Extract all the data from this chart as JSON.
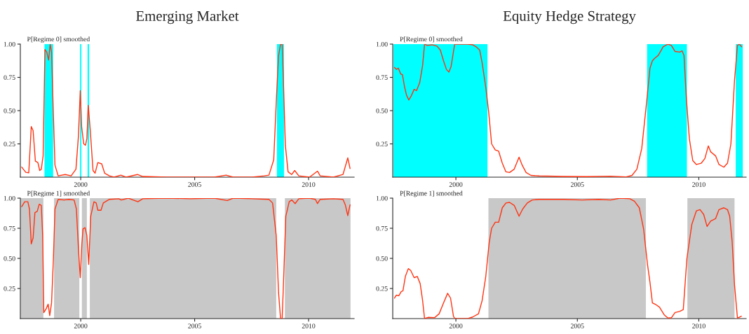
{
  "chart_data": [
    {
      "type": "line",
      "title": "Emerging Market",
      "annotations": [
        "P[Regime 0] smoothed"
      ],
      "xlim": [
        1997.35,
        2012.0
      ],
      "xticks": [
        2000,
        2005,
        2010
      ],
      "ylim": [
        0,
        1
      ],
      "yticks": [
        {
          "value": 0.25,
          "label": "0.25"
        },
        {
          "value": 0.5,
          "label": "0.50"
        },
        {
          "value": 0.75,
          "label": "0.75"
        },
        {
          "value": 1,
          "label": "1.00"
        }
      ],
      "bands": [
        {
          "axis": "x",
          "from": 1998.41,
          "to": 1998.79,
          "color": "#00ffff"
        },
        {
          "axis": "x",
          "from": 1999.97,
          "to": 2000.03,
          "color": "#00ffff"
        },
        {
          "axis": "x",
          "from": 2000.3,
          "to": 2000.37,
          "color": "#00ffff"
        },
        {
          "axis": "x",
          "from": 2008.61,
          "to": 2008.92,
          "color": "#00ffff"
        }
      ],
      "series": [
        {
          "color": "#ff3311",
          "x": [
            1997.41,
            1997.59,
            1997.72,
            1997.83,
            1997.91,
            1998.01,
            1998.12,
            1998.2,
            1998.27,
            1998.35,
            1998.43,
            1998.51,
            1998.59,
            1998.66,
            1998.72,
            1998.8,
            1998.87,
            1999.01,
            1999.32,
            1999.58,
            1999.79,
            1999.9,
            1999.98,
            2000.04,
            2000.13,
            2000.21,
            2000.27,
            2000.33,
            2000.42,
            2000.54,
            2000.63,
            2000.75,
            2000.92,
            2001.05,
            2001.26,
            2001.46,
            2001.76,
            2001.99,
            2002.49,
            2002.72,
            2003.77,
            2004.81,
            2005.86,
            2006.38,
            2006.69,
            2007.53,
            2008.05,
            2008.26,
            2008.47,
            2008.58,
            2008.68,
            2008.77,
            2008.84,
            2008.89,
            2008.98,
            2009.1,
            2009.26,
            2009.39,
            2009.57,
            2010.04,
            2010.39,
            2010.51,
            2011.09,
            2011.51,
            2011.72,
            2011.82
          ],
          "values": [
            0.076,
            0.036,
            0.033,
            0.38,
            0.35,
            0.12,
            0.11,
            0.05,
            0.06,
            0.16,
            0.96,
            0.94,
            0.88,
            1.0,
            0.94,
            0.47,
            0.09,
            0.01,
            0.02,
            0.01,
            0.06,
            0.31,
            0.65,
            0.38,
            0.25,
            0.24,
            0.29,
            0.54,
            0.35,
            0.05,
            0.03,
            0.11,
            0.1,
            0.03,
            0.01,
            0.0,
            0.015,
            0.0,
            0.02,
            0.005,
            0.0,
            0.0,
            0.0,
            0.015,
            0.0,
            0.0,
            0.01,
            0.015,
            0.13,
            0.56,
            0.91,
            1.0,
            1.0,
            0.75,
            0.24,
            0.04,
            0.02,
            0.05,
            0.01,
            0.0,
            0.045,
            0.01,
            0.0,
            0.02,
            0.145,
            0.065
          ]
        }
      ]
    },
    {
      "type": "line",
      "annotations": [
        "P[Regime 1] smoothed"
      ],
      "xlim": [
        1997.35,
        2012.0
      ],
      "xticks": [
        2000,
        2005,
        2010
      ],
      "ylim": [
        0,
        1
      ],
      "yticks": [
        {
          "value": 0.25,
          "label": "0.25"
        },
        {
          "value": 0.5,
          "label": "0.50"
        },
        {
          "value": 0.75,
          "label": "0.75"
        },
        {
          "value": 1,
          "label": "1.00"
        }
      ],
      "bands": [
        {
          "axis": "x",
          "from": 1997.36,
          "to": 1998.36,
          "color": "#c8c8c8"
        },
        {
          "axis": "x",
          "from": 1998.83,
          "to": 1999.94,
          "color": "#c8c8c8"
        },
        {
          "axis": "x",
          "from": 2000.05,
          "to": 2000.27,
          "color": "#c8c8c8"
        },
        {
          "axis": "x",
          "from": 2000.4,
          "to": 2008.58,
          "color": "#c8c8c8"
        },
        {
          "axis": "x",
          "from": 2008.96,
          "to": 2011.84,
          "color": "#c8c8c8"
        }
      ],
      "series": [
        {
          "color": "#ff3311",
          "x": [
            1997.41,
            1997.54,
            1997.68,
            1997.75,
            1997.83,
            1997.91,
            1997.99,
            1998.09,
            1998.18,
            1998.27,
            1998.33,
            1998.38,
            1998.48,
            1998.57,
            1998.64,
            1998.72,
            1998.8,
            1998.87,
            1999.01,
            1999.27,
            1999.48,
            1999.71,
            1999.81,
            1999.9,
            1999.98,
            2000.05,
            2000.1,
            2000.19,
            2000.27,
            2000.35,
            2000.44,
            2000.58,
            2000.68,
            2000.75,
            2000.89,
            2000.99,
            2001.26,
            2001.67,
            2001.78,
            2002.09,
            2002.51,
            2002.72,
            2003.77,
            2004.81,
            2005.86,
            2006.43,
            2006.69,
            2007.53,
            2008.26,
            2008.42,
            2008.58,
            2008.68,
            2008.77,
            2008.84,
            2008.89,
            2009.0,
            2009.15,
            2009.26,
            2009.41,
            2009.57,
            2010.04,
            2010.3,
            2010.39,
            2010.51,
            2011.09,
            2011.51,
            2011.61,
            2011.72,
            2011.82
          ],
          "values": [
            0.93,
            0.97,
            0.97,
            0.91,
            0.62,
            0.67,
            0.88,
            0.89,
            0.95,
            0.94,
            0.69,
            0.05,
            0.08,
            0.12,
            0.025,
            0.13,
            0.49,
            0.91,
            0.99,
            0.985,
            0.99,
            0.985,
            0.91,
            0.58,
            0.34,
            0.62,
            0.745,
            0.755,
            0.69,
            0.45,
            0.85,
            0.97,
            0.96,
            0.9,
            0.9,
            0.96,
            0.99,
            0.995,
            0.985,
            1.0,
            0.97,
            0.995,
            1.0,
            0.995,
            1.0,
            0.98,
            1.0,
            0.995,
            0.99,
            0.96,
            0.69,
            0.22,
            0.0,
            0.0,
            0.25,
            0.85,
            0.97,
            0.985,
            0.955,
            0.995,
            1.0,
            0.99,
            0.955,
            0.99,
            0.995,
            0.99,
            0.945,
            0.855,
            0.945
          ]
        }
      ]
    },
    {
      "type": "line",
      "title": "Equity Hedge Strategy",
      "annotations": [
        "P[Regime 0] smoothed"
      ],
      "xlim": [
        1997.4,
        2011.95
      ],
      "xticks": [
        2000,
        2005,
        2010
      ],
      "ylim": [
        0,
        1
      ],
      "yticks": [
        {
          "value": 0.25,
          "label": "0.25"
        },
        {
          "value": 0.5,
          "label": "0.50"
        },
        {
          "value": 0.75,
          "label": "0.75"
        },
        {
          "value": 1,
          "label": "1.00"
        }
      ],
      "bands": [
        {
          "axis": "x",
          "from": 1997.43,
          "to": 2001.3,
          "color": "#00ffff"
        },
        {
          "axis": "x",
          "from": 2007.87,
          "to": 2009.51,
          "color": "#00ffff"
        },
        {
          "axis": "x",
          "from": 2011.52,
          "to": 2011.81,
          "color": "#00ffff"
        }
      ],
      "series": [
        {
          "color": "#ff3311",
          "x": [
            1997.47,
            1997.55,
            1997.63,
            1997.73,
            1997.8,
            1997.89,
            1997.97,
            1998.06,
            1998.16,
            1998.28,
            1998.38,
            1998.51,
            1998.63,
            1998.71,
            1998.82,
            1999.02,
            1999.22,
            1999.36,
            1999.49,
            1999.61,
            1999.71,
            1999.8,
            1999.95,
            2000.49,
            2000.69,
            2000.83,
            2000.98,
            2001.08,
            2001.23,
            2001.35,
            2001.47,
            2001.62,
            2001.76,
            2001.91,
            2002.06,
            2002.21,
            2002.4,
            2002.6,
            2002.73,
            2002.89,
            2003.09,
            2003.43,
            2004.41,
            2005.39,
            2006.37,
            2007.01,
            2007.25,
            2007.45,
            2007.65,
            2007.84,
            2007.99,
            2008.09,
            2008.19,
            2008.33,
            2008.53,
            2008.73,
            2008.87,
            2009.02,
            2009.22,
            2009.31,
            2009.39,
            2009.49,
            2009.61,
            2009.75,
            2009.9,
            2010.1,
            2010.25,
            2010.39,
            2010.49,
            2010.69,
            2010.83,
            2011.03,
            2011.18,
            2011.32,
            2011.47,
            2011.59,
            2011.67,
            2011.76
          ],
          "values": [
            0.825,
            0.81,
            0.82,
            0.775,
            0.77,
            0.675,
            0.615,
            0.58,
            0.61,
            0.66,
            0.65,
            0.71,
            0.84,
            1.0,
            0.99,
            0.995,
            0.985,
            0.955,
            0.875,
            0.81,
            0.79,
            0.83,
            1.0,
            1.0,
            0.995,
            0.98,
            0.955,
            0.86,
            0.675,
            0.49,
            0.25,
            0.205,
            0.195,
            0.105,
            0.04,
            0.035,
            0.06,
            0.15,
            0.09,
            0.035,
            0.013,
            0.009,
            0.005,
            0.004,
            0.007,
            0.002,
            0.013,
            0.06,
            0.215,
            0.545,
            0.82,
            0.875,
            0.895,
            0.915,
            0.98,
            1.0,
            0.99,
            0.945,
            0.94,
            0.95,
            0.915,
            0.585,
            0.29,
            0.125,
            0.095,
            0.105,
            0.14,
            0.235,
            0.19,
            0.16,
            0.095,
            0.075,
            0.105,
            0.25,
            0.73,
            0.99,
            1.0,
            0.98
          ]
        }
      ]
    },
    {
      "type": "line",
      "annotations": [
        "P[Regime 1] smoothed"
      ],
      "xlim": [
        1997.4,
        2011.95
      ],
      "xticks": [
        2000,
        2005,
        2010
      ],
      "ylim": [
        0,
        1
      ],
      "yticks": [
        {
          "value": 0.25,
          "label": "0.25"
        },
        {
          "value": 0.5,
          "label": "0.50"
        },
        {
          "value": 0.75,
          "label": "0.75"
        },
        {
          "value": 1,
          "label": "1.00"
        }
      ],
      "bands": [
        {
          "axis": "x",
          "from": 2001.34,
          "to": 2007.82,
          "color": "#c8c8c8"
        },
        {
          "axis": "x",
          "from": 2009.53,
          "to": 2011.47,
          "color": "#c8c8c8"
        }
      ],
      "series": [
        {
          "color": "#ff3311",
          "x": [
            1997.47,
            1997.55,
            1997.65,
            1997.75,
            1997.82,
            1997.92,
            1998.04,
            1998.14,
            1998.28,
            1998.41,
            1998.53,
            1998.63,
            1998.71,
            1998.87,
            1999.12,
            1999.31,
            1999.49,
            1999.66,
            1999.78,
            1999.9,
            1999.95,
            2000.49,
            2000.69,
            2000.93,
            2001.08,
            2001.23,
            2001.37,
            2001.47,
            2001.62,
            2001.76,
            2001.91,
            2002.06,
            2002.21,
            2002.4,
            2002.6,
            2002.75,
            2002.94,
            2003.14,
            2003.43,
            2004.41,
            2005.2,
            2005.88,
            2006.37,
            2006.76,
            2007.16,
            2007.35,
            2007.55,
            2007.73,
            2007.89,
            2007.99,
            2008.09,
            2008.24,
            2008.38,
            2008.58,
            2008.73,
            2008.87,
            2009.02,
            2009.22,
            2009.36,
            2009.51,
            2009.71,
            2009.9,
            2010.05,
            2010.2,
            2010.34,
            2010.49,
            2010.69,
            2010.83,
            2011.03,
            2011.18,
            2011.27,
            2011.37,
            2011.47,
            2011.59,
            2011.75
          ],
          "values": [
            0.17,
            0.195,
            0.19,
            0.225,
            0.23,
            0.35,
            0.415,
            0.4,
            0.34,
            0.35,
            0.29,
            0.15,
            0.0,
            0.01,
            0.007,
            0.04,
            0.13,
            0.21,
            0.17,
            0.02,
            0.0,
            0.0,
            0.013,
            0.04,
            0.15,
            0.35,
            0.63,
            0.75,
            0.8,
            0.8,
            0.92,
            0.96,
            0.965,
            0.94,
            0.85,
            0.91,
            0.96,
            0.985,
            0.99,
            0.99,
            0.985,
            0.99,
            0.985,
            1.0,
            0.995,
            0.975,
            0.92,
            0.74,
            0.445,
            0.3,
            0.13,
            0.115,
            0.095,
            0.03,
            0.004,
            0.007,
            0.05,
            0.06,
            0.075,
            0.5,
            0.78,
            0.895,
            0.905,
            0.865,
            0.765,
            0.81,
            0.83,
            0.905,
            0.92,
            0.905,
            0.85,
            0.645,
            0.28,
            0.004,
            0.02
          ]
        }
      ]
    }
  ]
}
